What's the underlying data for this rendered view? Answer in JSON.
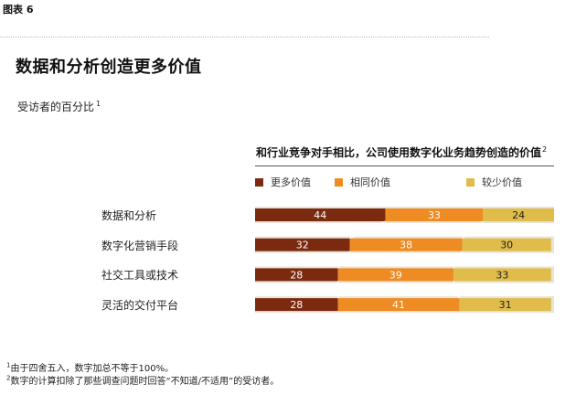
{
  "exhibit_label": "图表 6",
  "title": "数据和分析创造更多价值",
  "subtitle": "受访者的百分比",
  "subtitle_marker": "1",
  "chart_data": {
    "type": "bar",
    "orientation": "horizontal",
    "stacked": true,
    "title": "和行业竞争对手相比，公司使用数字化业务趋势创造的价值",
    "title_marker": "2",
    "categories": [
      "数据和分析",
      "数字化营销手段",
      "社交工具或技术",
      "灵活的交付平台"
    ],
    "series": [
      {
        "name": "更多价值",
        "color": "#7b2a10",
        "values": [
          44,
          32,
          28,
          28
        ]
      },
      {
        "name": "相同价值",
        "color": "#ee8b22",
        "values": [
          33,
          38,
          39,
          41
        ]
      },
      {
        "name": "较少价值",
        "color": "#e0bc4b",
        "values": [
          24,
          30,
          33,
          31
        ]
      }
    ],
    "xlim": [
      0,
      101
    ],
    "legend_position": "top",
    "band_color": "#e7e3d5"
  },
  "footnotes": [
    {
      "marker": "1",
      "text": "由于四舍五入，数字加总不等于100%。"
    },
    {
      "marker": "2",
      "text": "数字的计算扣除了那些调查问题时回答“不知道/不适用”的受访者。"
    }
  ]
}
